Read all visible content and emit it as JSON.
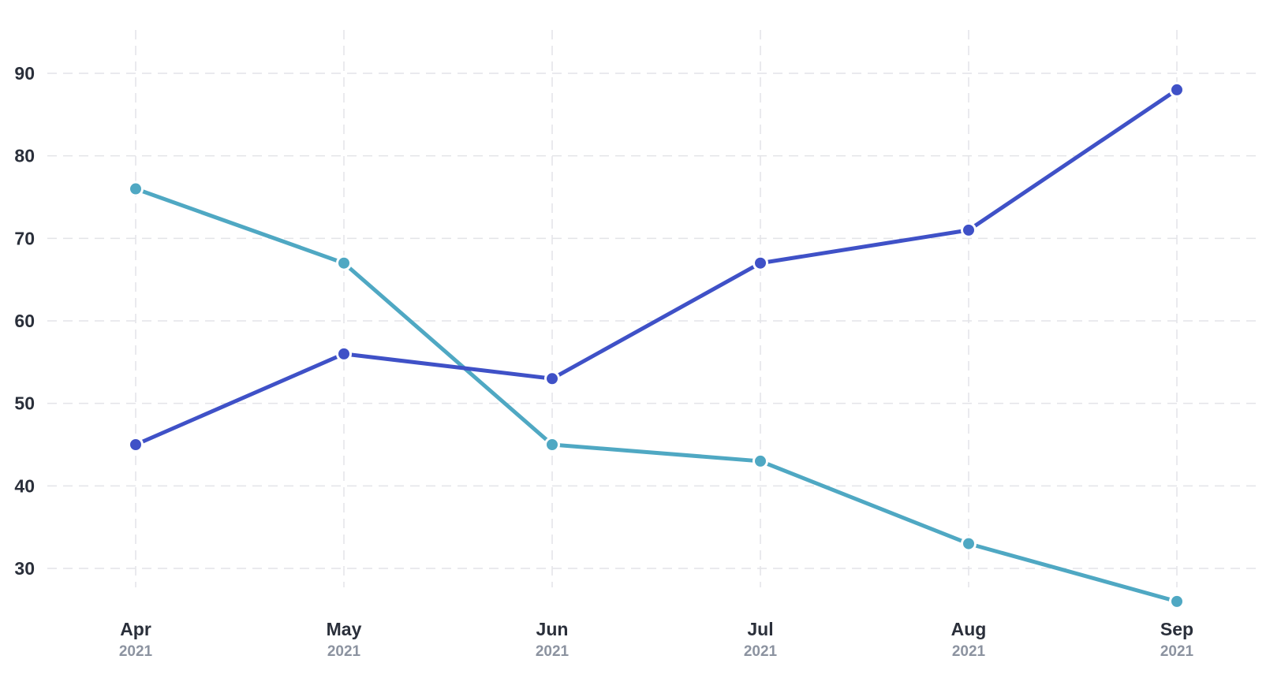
{
  "chart_data": {
    "type": "line",
    "title": "",
    "xlabel": "",
    "ylabel": "",
    "categories": [
      {
        "month": "Apr",
        "year": "2021"
      },
      {
        "month": "May",
        "year": "2021"
      },
      {
        "month": "Jun",
        "year": "2021"
      },
      {
        "month": "Jul",
        "year": "2021"
      },
      {
        "month": "Aug",
        "year": "2021"
      },
      {
        "month": "Sep",
        "year": "2021"
      }
    ],
    "yticks": [
      30,
      40,
      50,
      60,
      70,
      80,
      90
    ],
    "ylim": [
      25,
      95
    ],
    "grid": true,
    "legend": "none",
    "series": [
      {
        "color": "#4fa8c3",
        "values": [
          76,
          67,
          45,
          43,
          33,
          26
        ]
      },
      {
        "color": "#3f51c7",
        "values": [
          45,
          56,
          53,
          67,
          71,
          88
        ]
      }
    ]
  }
}
